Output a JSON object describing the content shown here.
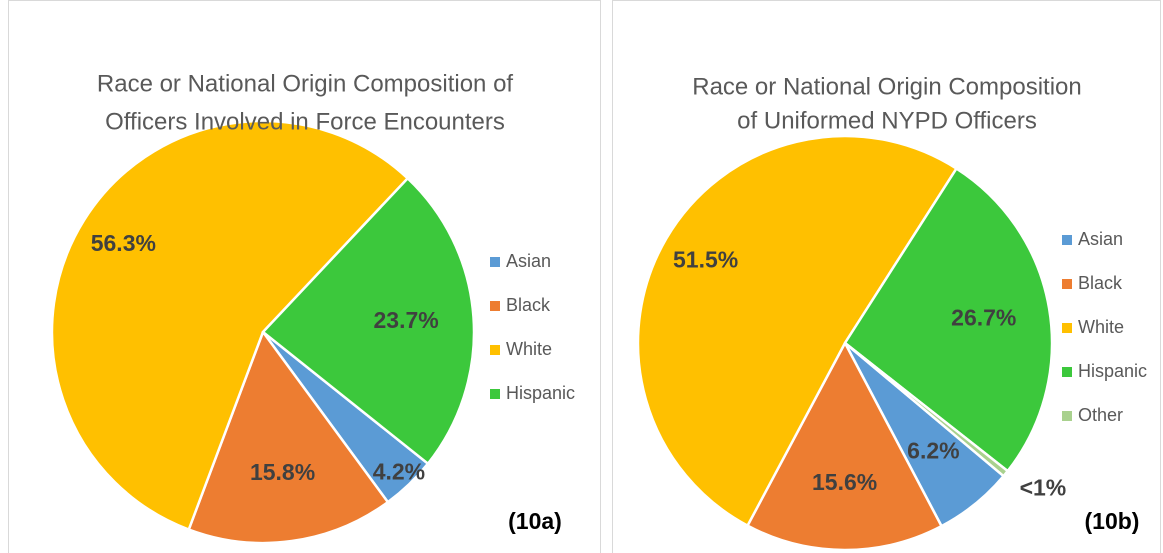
{
  "chart_data": [
    {
      "type": "pie",
      "title": [
        "Race or National Origin Composition of",
        "Officers Involved in Force Encounters"
      ],
      "categories": [
        "Asian",
        "Black",
        "White",
        "Hispanic"
      ],
      "values": [
        4.2,
        15.8,
        56.3,
        23.7
      ],
      "value_labels": [
        "4.2%",
        "15.8%",
        "56.3%",
        "23.7%"
      ],
      "colors": [
        "#5b9bd5",
        "#ed7d31",
        "#ffc000",
        "#3cc83c"
      ],
      "annotation": "(10a)",
      "legend": "right"
    },
    {
      "type": "pie",
      "title": [
        "Race or National Origin Composition",
        "of Uniformed NYPD Officers"
      ],
      "categories": [
        "Asian",
        "Black",
        "White",
        "Hispanic",
        "Other"
      ],
      "values": [
        6.2,
        15.6,
        51.5,
        26.7,
        0.5
      ],
      "value_labels": [
        "6.2%",
        "15.6%",
        "51.5%",
        "26.7%",
        "<1%"
      ],
      "colors": [
        "#5b9bd5",
        "#ed7d31",
        "#ffc000",
        "#3cc83c",
        "#a9d18e"
      ],
      "annotation": "(10b)",
      "legend": "right"
    }
  ]
}
